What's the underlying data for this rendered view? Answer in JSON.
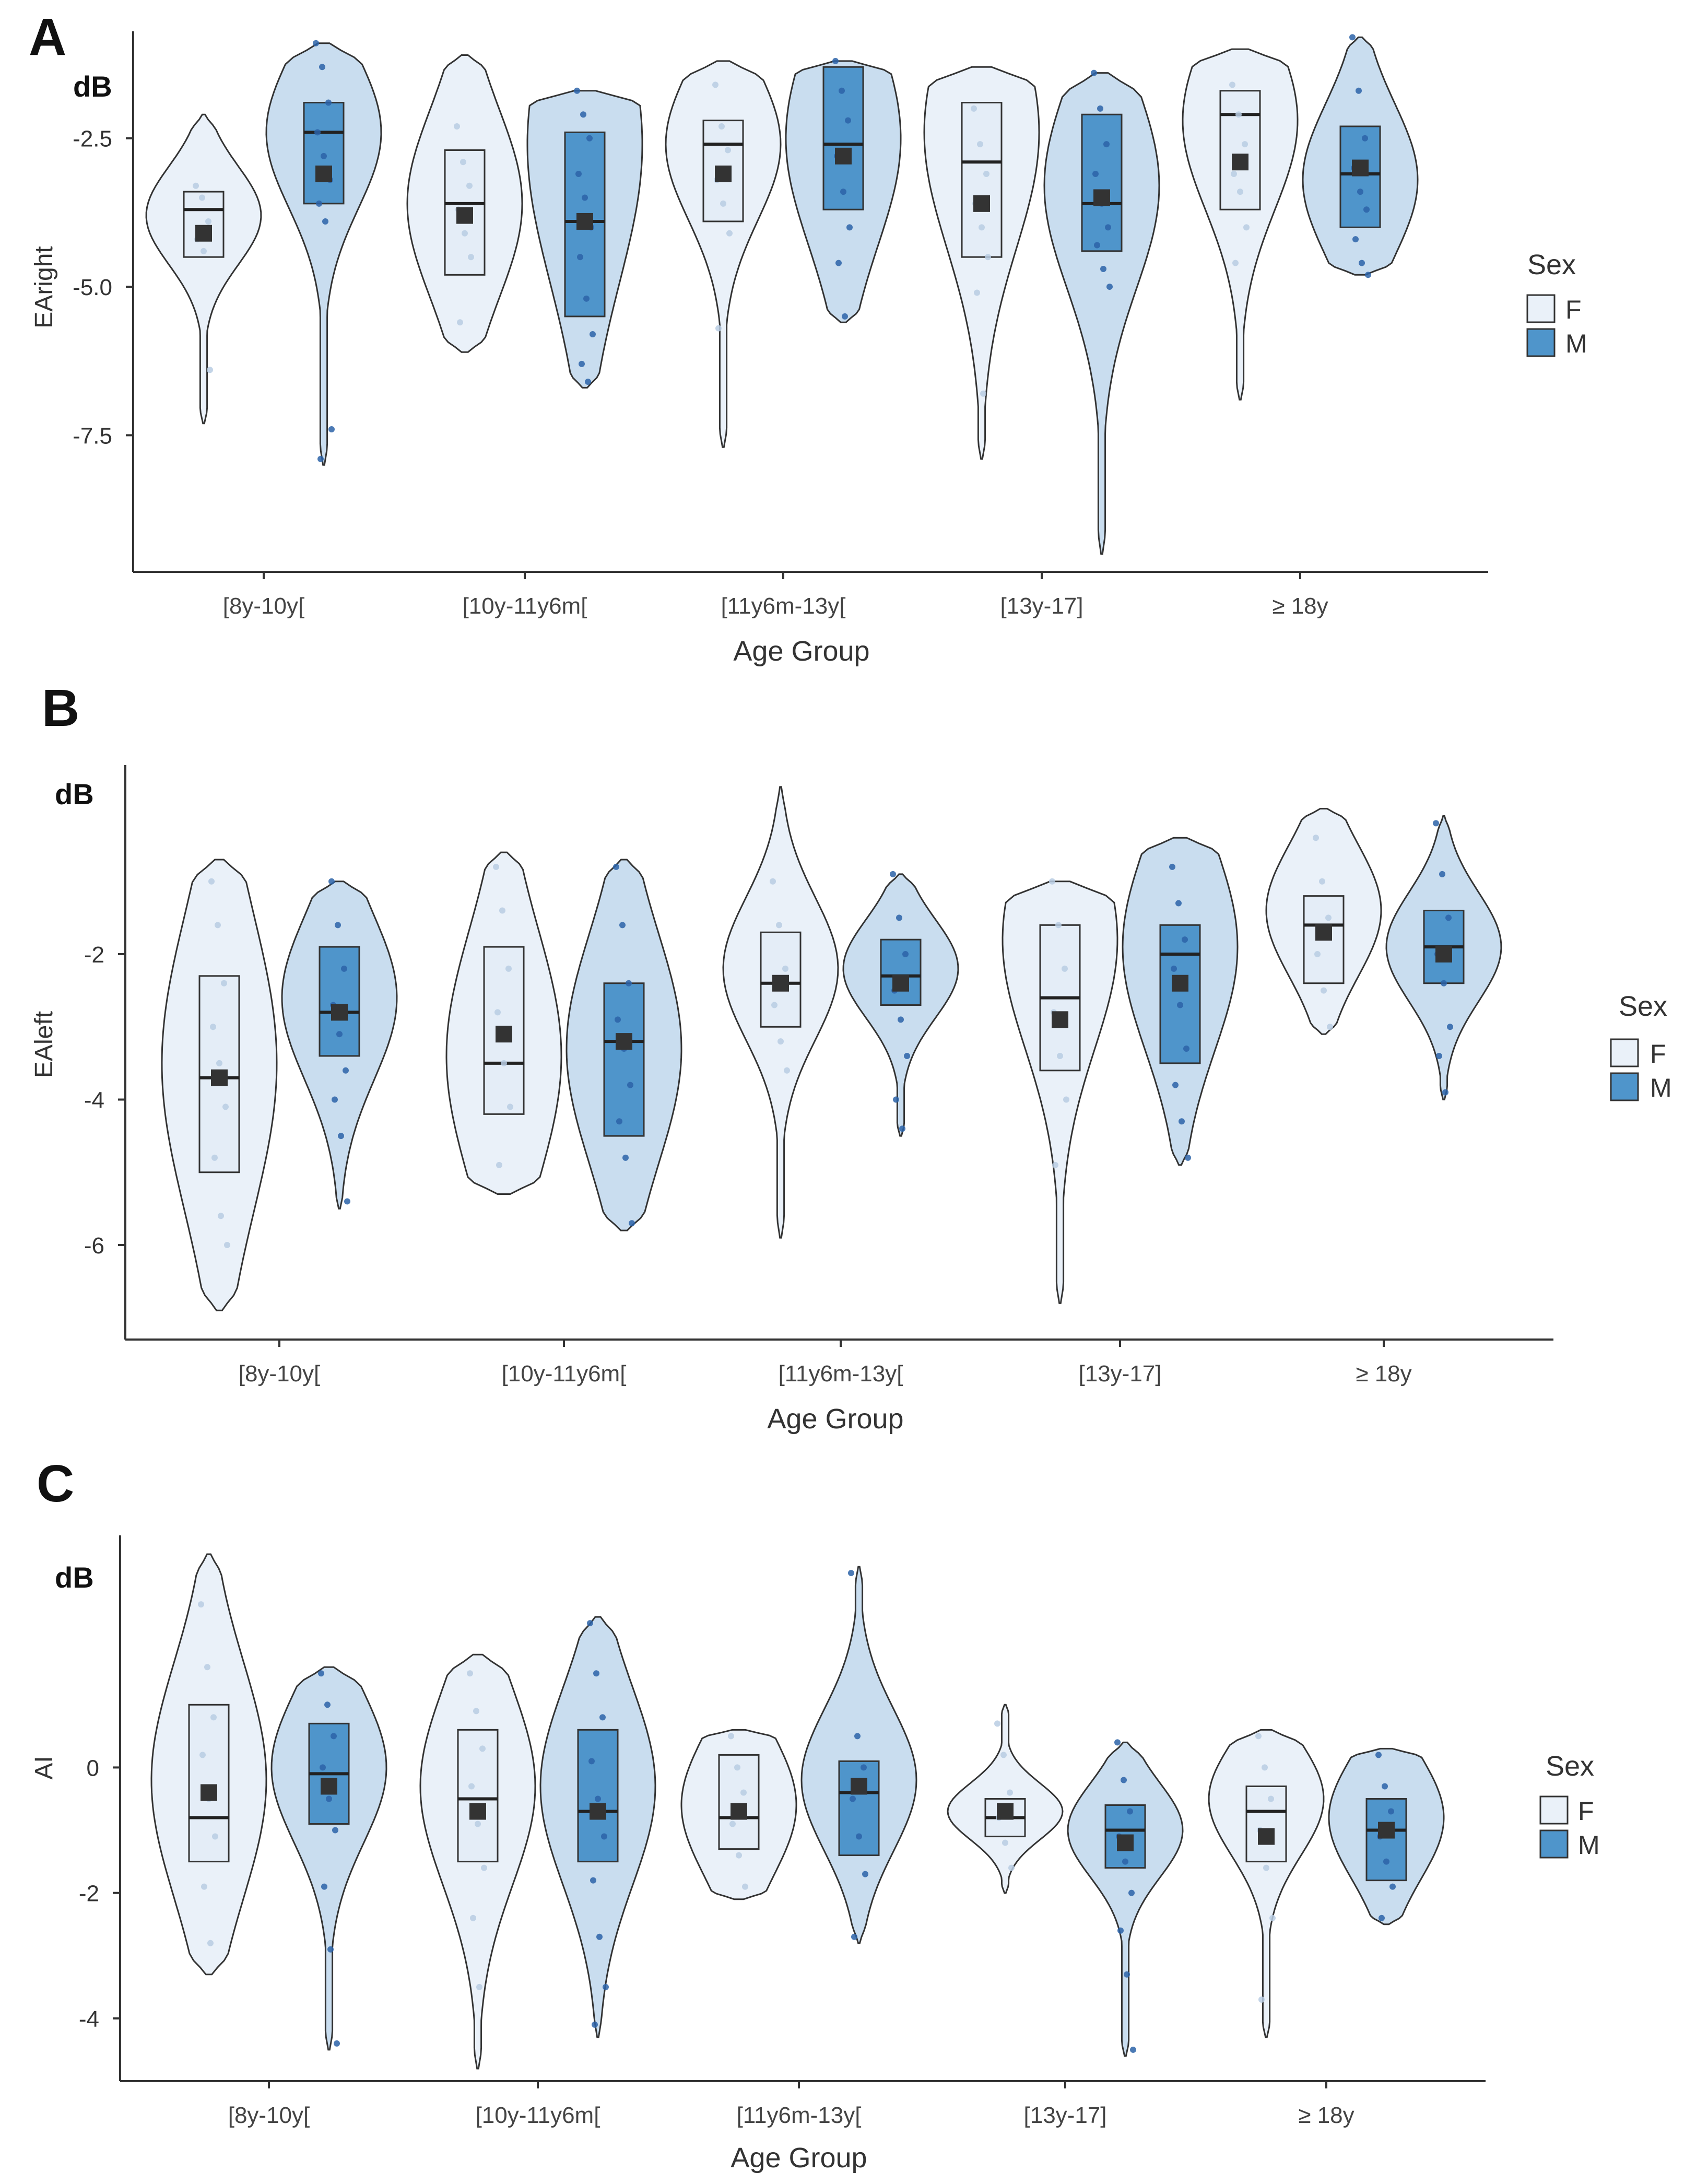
{
  "panels": [
    {
      "letter": "A",
      "unit": "dB",
      "ylabel": "EAright",
      "xlabel": "Age Group",
      "legend_title": "Sex",
      "categories": [
        "[8y-10y[",
        "[10y-11y6m[",
        "[11y6m-13y[",
        "[13y-17]",
        "≥ 18y"
      ],
      "yticks": [
        -2.5,
        -5.0,
        -7.5
      ],
      "ytick_labels": [
        "-2.5",
        "-5.0",
        "-7.5"
      ],
      "ylim": [
        -9.8,
        -0.7
      ],
      "legend": [
        "F",
        "M"
      ]
    },
    {
      "letter": "B",
      "unit": "dB",
      "ylabel": "EAleft",
      "xlabel": "Age Group",
      "legend_title": "Sex",
      "categories": [
        "[8y-10y[",
        "[10y-11y6m[",
        "[11y6m-13y[",
        "[13y-17]",
        "≥ 18y"
      ],
      "yticks": [
        -2,
        -4,
        -6
      ],
      "ytick_labels": [
        "-2",
        "-4",
        "-6"
      ],
      "ylim": [
        -7.3,
        0.6
      ],
      "legend": [
        "F",
        "M"
      ]
    },
    {
      "letter": "C",
      "unit": "dB",
      "ylabel": "AI",
      "xlabel": "Age Group",
      "legend_title": "Sex",
      "categories": [
        "[8y-10y[",
        "[10y-11y6m[",
        "[11y6m-13y[",
        "[13y-17]",
        "≥ 18y"
      ],
      "yticks": [
        0,
        -2,
        -4
      ],
      "ytick_labels": [
        "0",
        "-2",
        "-4"
      ],
      "ylim": [
        -5.0,
        3.7
      ],
      "legend": [
        "F",
        "M"
      ]
    }
  ],
  "colors": {
    "F_fill": "#eaf1f9",
    "M_fill": "#c9ddef",
    "F_box": "#e4edf7",
    "M_box": "#4f95cb",
    "F_point": "#b9cde3",
    "M_point": "#2c63a8",
    "outline": "#333333",
    "mean": "#333333"
  },
  "chart_data": [
    {
      "type": "violin",
      "title": "A",
      "ylabel": "EAright",
      "xlabel": "Age Group",
      "categories": [
        "[8y-10y[",
        "[10y-11y6m[",
        "[11y6m-13y[",
        "[13y-17]",
        "≥ 18y"
      ],
      "ylim": [
        -9.8,
        -0.7
      ],
      "series": [
        {
          "name": "F",
          "groups": [
            {
              "min": -7.3,
              "q1": -4.5,
              "median": -3.7,
              "q3": -3.4,
              "max": -2.1,
              "mean": -4.1,
              "peak": -3.8,
              "points": [
                -3.3,
                -3.5,
                -3.9,
                -4.2,
                -4.4,
                -6.4
              ]
            },
            {
              "min": -6.1,
              "q1": -4.8,
              "median": -3.6,
              "q3": -2.7,
              "max": -1.1,
              "mean": -3.8,
              "peak": -3.6,
              "points": [
                -2.3,
                -2.9,
                -3.3,
                -3.7,
                -4.1,
                -4.5,
                -5.6
              ]
            },
            {
              "min": -7.7,
              "q1": -3.9,
              "median": -2.6,
              "q3": -2.2,
              "max": -1.2,
              "mean": -3.1,
              "peak": -2.6,
              "points": [
                -1.6,
                -2.3,
                -2.7,
                -3.2,
                -3.6,
                -4.1,
                -5.7
              ]
            },
            {
              "min": -7.9,
              "q1": -4.5,
              "median": -2.9,
              "q3": -1.9,
              "max": -1.3,
              "mean": -3.6,
              "peak": -2.4,
              "points": [
                -2.0,
                -2.6,
                -3.1,
                -3.6,
                -4.0,
                -4.5,
                -5.1,
                -6.8
              ]
            },
            {
              "min": -6.9,
              "q1": -3.7,
              "median": -2.1,
              "q3": -1.7,
              "max": -1.0,
              "mean": -2.9,
              "peak": -2.2,
              "points": [
                -1.6,
                -2.1,
                -2.6,
                -3.1,
                -3.4,
                -4.0,
                -4.6
              ]
            }
          ]
        },
        {
          "name": "M",
          "groups": [
            {
              "min": -8.0,
              "q1": -3.6,
              "median": -2.4,
              "q3": -1.9,
              "max": -0.9,
              "mean": -3.1,
              "peak": -2.4,
              "points": [
                -0.9,
                -1.3,
                -1.9,
                -2.4,
                -2.8,
                -3.2,
                -3.6,
                -3.9,
                -7.4,
                -7.9
              ]
            },
            {
              "min": -6.7,
              "q1": -5.5,
              "median": -3.9,
              "q3": -2.4,
              "max": -1.7,
              "mean": -3.9,
              "peak": -2.6,
              "points": [
                -1.7,
                -2.1,
                -2.5,
                -3.1,
                -3.5,
                -4.0,
                -4.5,
                -5.2,
                -5.8,
                -6.3,
                -6.6
              ]
            },
            {
              "min": -5.6,
              "q1": -3.7,
              "median": -2.6,
              "q3": -1.3,
              "max": -1.2,
              "mean": -2.8,
              "peak": -2.5,
              "points": [
                -1.2,
                -1.7,
                -2.2,
                -2.8,
                -3.4,
                -4.0,
                -4.6,
                -5.5
              ]
            },
            {
              "min": -9.5,
              "q1": -4.4,
              "median": -3.6,
              "q3": -2.1,
              "max": -1.4,
              "mean": -3.5,
              "peak": -3.3,
              "points": [
                -1.4,
                -2.0,
                -2.6,
                -3.1,
                -3.6,
                -4.0,
                -4.3,
                -4.7,
                -5.0
              ]
            },
            {
              "min": -4.8,
              "q1": -4.0,
              "median": -3.1,
              "q3": -2.3,
              "max": -0.8,
              "mean": -3.0,
              "peak": -3.2,
              "points": [
                -0.8,
                -1.7,
                -2.5,
                -3.0,
                -3.4,
                -3.7,
                -4.2,
                -4.6,
                -4.8
              ]
            }
          ]
        }
      ]
    },
    {
      "type": "violin",
      "title": "B",
      "ylabel": "EAleft",
      "xlabel": "Age Group",
      "categories": [
        "[8y-10y[",
        "[10y-11y6m[",
        "[11y6m-13y[",
        "[13y-17]",
        "≥ 18y"
      ],
      "ylim": [
        -7.3,
        0.6
      ],
      "series": [
        {
          "name": "F",
          "groups": [
            {
              "min": -6.9,
              "q1": -5.0,
              "median": -3.7,
              "q3": -2.3,
              "max": -0.7,
              "mean": -3.7,
              "peak": -3.5,
              "points": [
                -1.0,
                -1.6,
                -2.4,
                -3.0,
                -3.5,
                -4.1,
                -4.8,
                -5.6,
                -6.0
              ]
            },
            {
              "min": -5.3,
              "q1": -4.2,
              "median": -3.5,
              "q3": -1.9,
              "max": -0.6,
              "mean": -3.1,
              "peak": -3.4,
              "points": [
                -0.8,
                -1.4,
                -2.2,
                -2.8,
                -3.5,
                -4.1,
                -4.9
              ]
            },
            {
              "min": -5.9,
              "q1": -3.0,
              "median": -2.4,
              "q3": -1.7,
              "max": 0.3,
              "mean": -2.4,
              "peak": -2.2,
              "points": [
                -1.0,
                -1.6,
                -2.2,
                -2.7,
                -3.2,
                -3.6
              ]
            },
            {
              "min": -6.8,
              "q1": -3.6,
              "median": -2.6,
              "q3": -1.6,
              "max": -1.0,
              "mean": -2.9,
              "peak": -1.8,
              "points": [
                -1.0,
                -1.6,
                -2.2,
                -2.8,
                -3.4,
                -4.0,
                -4.9
              ]
            },
            {
              "min": -3.1,
              "q1": -2.4,
              "median": -1.6,
              "q3": -1.2,
              "max": 0.0,
              "mean": -1.7,
              "peak": -1.4,
              "points": [
                -0.4,
                -1.0,
                -1.5,
                -2.0,
                -2.5,
                -3.0
              ]
            }
          ]
        },
        {
          "name": "M",
          "groups": [
            {
              "min": -5.5,
              "q1": -3.4,
              "median": -2.8,
              "q3": -1.9,
              "max": -1.0,
              "mean": -2.8,
              "peak": -2.6,
              "points": [
                -1.0,
                -1.6,
                -2.2,
                -2.7,
                -3.1,
                -3.6,
                -4.0,
                -4.5,
                -5.4
              ]
            },
            {
              "min": -5.8,
              "q1": -4.5,
              "median": -3.2,
              "q3": -2.4,
              "max": -0.7,
              "mean": -3.2,
              "peak": -3.3,
              "points": [
                -0.8,
                -1.6,
                -2.4,
                -2.9,
                -3.3,
                -3.8,
                -4.3,
                -4.8,
                -5.7
              ]
            },
            {
              "min": -4.5,
              "q1": -2.7,
              "median": -2.3,
              "q3": -1.8,
              "max": -0.9,
              "mean": -2.4,
              "peak": -2.2,
              "points": [
                -0.9,
                -1.5,
                -2.0,
                -2.5,
                -2.9,
                -3.4,
                -4.0,
                -4.4
              ]
            },
            {
              "min": -4.9,
              "q1": -3.5,
              "median": -2.0,
              "q3": -1.6,
              "max": -0.4,
              "mean": -2.4,
              "peak": -1.9,
              "points": [
                -0.8,
                -1.3,
                -1.8,
                -2.2,
                -2.7,
                -3.3,
                -3.8,
                -4.3,
                -4.8
              ]
            },
            {
              "min": -4.0,
              "q1": -2.4,
              "median": -1.9,
              "q3": -1.4,
              "max": -0.1,
              "mean": -2.0,
              "peak": -1.9,
              "points": [
                -0.2,
                -0.9,
                -1.5,
                -2.0,
                -2.4,
                -3.0,
                -3.4,
                -3.9
              ]
            }
          ]
        }
      ]
    },
    {
      "type": "violin",
      "title": "C",
      "ylabel": "AI",
      "xlabel": "Age Group",
      "categories": [
        "[8y-10y[",
        "[10y-11y6m[",
        "[11y6m-13y[",
        "[13y-17]",
        "≥ 18y"
      ],
      "ylim": [
        -5.0,
        3.7
      ],
      "series": [
        {
          "name": "F",
          "groups": [
            {
              "min": -3.3,
              "q1": -1.5,
              "median": -0.8,
              "q3": 1.0,
              "max": 3.4,
              "mean": -0.4,
              "peak": -0.2,
              "points": [
                2.6,
                1.6,
                0.8,
                0.2,
                -0.5,
                -1.1,
                -1.9,
                -2.8
              ]
            },
            {
              "min": -4.8,
              "q1": -1.5,
              "median": -0.5,
              "q3": 0.6,
              "max": 1.8,
              "mean": -0.7,
              "peak": -0.3,
              "points": [
                1.5,
                0.9,
                0.3,
                -0.3,
                -0.9,
                -1.6,
                -2.4,
                -3.5
              ]
            },
            {
              "min": -2.1,
              "q1": -1.3,
              "median": -0.8,
              "q3": 0.2,
              "max": 0.6,
              "mean": -0.7,
              "peak": -0.6,
              "points": [
                0.5,
                0.0,
                -0.4,
                -0.9,
                -1.4,
                -1.9
              ]
            },
            {
              "min": -2.0,
              "q1": -1.1,
              "median": -0.8,
              "q3": -0.5,
              "max": 1.0,
              "mean": -0.7,
              "peak": -0.7,
              "points": [
                0.7,
                0.2,
                -0.4,
                -0.8,
                -1.2,
                -1.6
              ]
            },
            {
              "min": -4.3,
              "q1": -1.5,
              "median": -0.7,
              "q3": -0.3,
              "max": 0.6,
              "mean": -1.1,
              "peak": -0.5,
              "points": [
                0.5,
                0.0,
                -0.5,
                -1.0,
                -1.6,
                -2.4,
                -3.7
              ]
            }
          ]
        },
        {
          "name": "M",
          "groups": [
            {
              "min": -4.5,
              "q1": -0.9,
              "median": -0.1,
              "q3": 0.7,
              "max": 1.6,
              "mean": -0.3,
              "peak": 0.0,
              "points": [
                1.5,
                1.0,
                0.5,
                0.0,
                -0.5,
                -1.0,
                -1.9,
                -2.9,
                -4.4
              ]
            },
            {
              "min": -4.3,
              "q1": -1.5,
              "median": -0.7,
              "q3": 0.6,
              "max": 2.4,
              "mean": -0.7,
              "peak": -0.3,
              "points": [
                2.3,
                1.5,
                0.8,
                0.1,
                -0.5,
                -1.1,
                -1.8,
                -2.7,
                -3.5,
                -4.1
              ]
            },
            {
              "min": -2.8,
              "q1": -1.4,
              "median": -0.4,
              "q3": 0.1,
              "max": 3.2,
              "mean": -0.3,
              "peak": -0.2,
              "points": [
                3.1,
                0.5,
                0.0,
                -0.5,
                -1.1,
                -1.7,
                -2.7
              ]
            },
            {
              "min": -4.6,
              "q1": -1.6,
              "median": -1.0,
              "q3": -0.6,
              "max": 0.4,
              "mean": -1.2,
              "peak": -1.0,
              "points": [
                0.4,
                -0.2,
                -0.7,
                -1.1,
                -1.5,
                -2.0,
                -2.6,
                -3.3,
                -4.5
              ]
            },
            {
              "min": -2.5,
              "q1": -1.8,
              "median": -1.0,
              "q3": -0.5,
              "max": 0.3,
              "mean": -1.0,
              "peak": -0.8,
              "points": [
                0.2,
                -0.3,
                -0.7,
                -1.1,
                -1.5,
                -1.9,
                -2.4
              ]
            }
          ]
        }
      ]
    }
  ]
}
